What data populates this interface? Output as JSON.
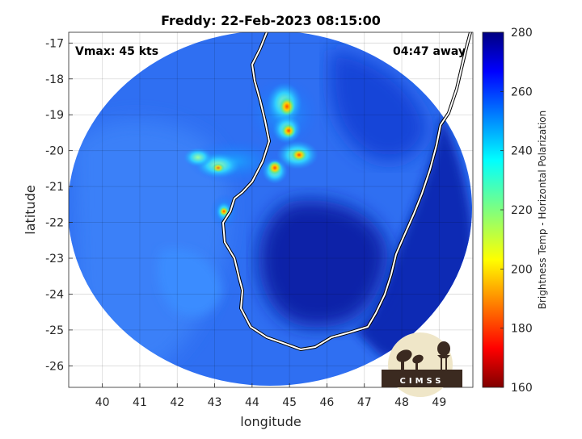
{
  "figure": {
    "title": "Freddy: 22-Feb-2023 08:15:00",
    "vmax_label": "Vmax: 45 kts",
    "time_label": "04:47 away",
    "xlabel": "longitude",
    "ylabel": "latitude",
    "logo_text": "CIMSS"
  },
  "chart_data": {
    "type": "heatmap",
    "title": "Freddy: 22-Feb-2023 08:15:00",
    "xlabel": "longitude",
    "ylabel": "latitude",
    "xlim": [
      39.1,
      49.9
    ],
    "ylim": [
      -26.6,
      -16.7
    ],
    "xticks": [
      "40",
      "41",
      "42",
      "43",
      "44",
      "45",
      "46",
      "47",
      "48",
      "49"
    ],
    "yticks": [
      "-17",
      "-18",
      "-19",
      "-20",
      "-21",
      "-22",
      "-23",
      "-24",
      "-25",
      "-26"
    ],
    "xtick_values": [
      40,
      41,
      42,
      43,
      44,
      45,
      46,
      47,
      48,
      49
    ],
    "ytick_values": [
      -17,
      -18,
      -19,
      -20,
      -21,
      -22,
      -23,
      -24,
      -25,
      -26
    ],
    "grid": true,
    "colorbar": {
      "label": "Brightness Temp - Horizontal Polarization",
      "range": [
        160,
        280
      ],
      "ticks": [
        "280",
        "260",
        "240",
        "220",
        "200",
        "180",
        "160"
      ],
      "tick_values": [
        280,
        260,
        240,
        220,
        200,
        180,
        160
      ],
      "colormap": "jet"
    },
    "annotations": [
      "Vmax: 45 kts",
      "04:47 away"
    ],
    "colors": {
      "background_swath": "#2d6cf0",
      "deep_ocean": "#0c24a8",
      "convection": "#ff6a00",
      "coastline": "#ffffff"
    }
  }
}
